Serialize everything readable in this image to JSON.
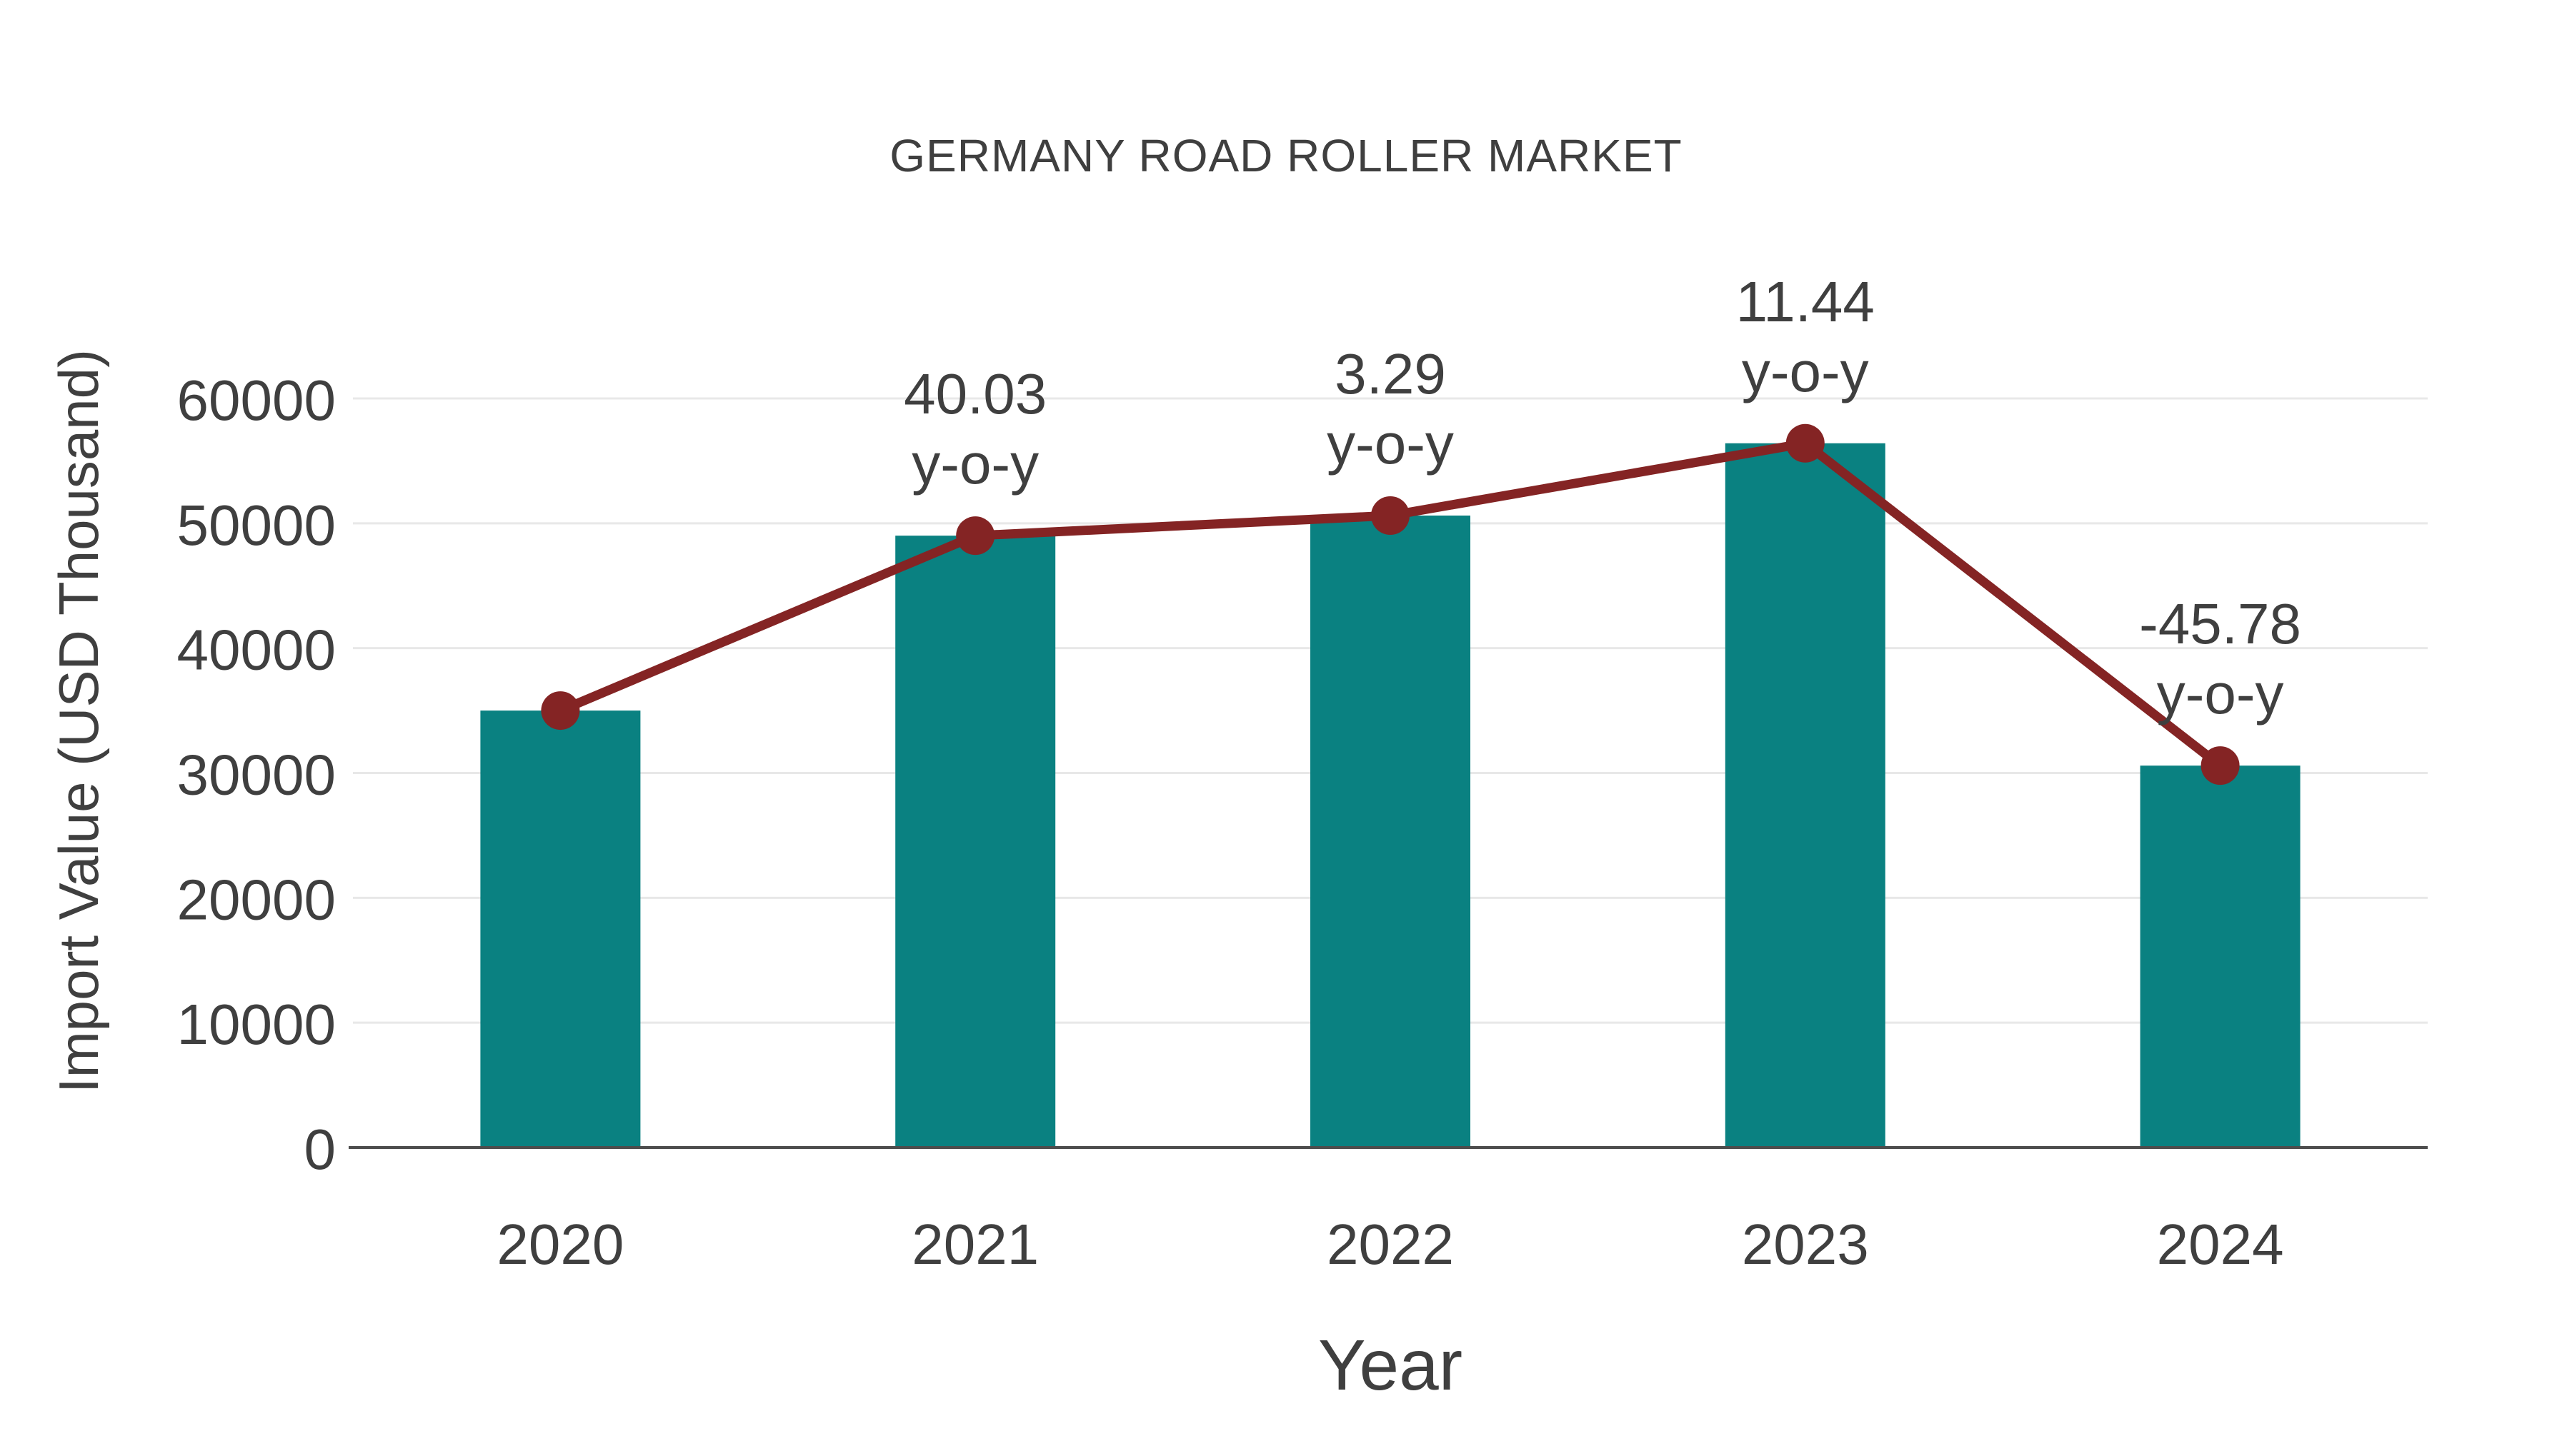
{
  "chart_data": {
    "type": "bar",
    "title": "GERMANY ROAD ROLLER MARKET",
    "xlabel": "Year",
    "ylabel": "Import Value (USD Thousand)",
    "categories": [
      "2020",
      "2021",
      "2022",
      "2023",
      "2024"
    ],
    "series": [
      {
        "name": "Import Value bars",
        "type": "bar",
        "values": [
          35000,
          49010,
          50620,
          56410,
          30590
        ],
        "color": "#0a8181"
      },
      {
        "name": "Import Value trend line",
        "type": "line",
        "values": [
          35000,
          49010,
          50620,
          56410,
          30590
        ],
        "color": "#842424"
      }
    ],
    "annotations": [
      {
        "category": "2021",
        "line1": "40.03",
        "line2": "y-o-y"
      },
      {
        "category": "2022",
        "line1": "3.29",
        "line2": "y-o-y"
      },
      {
        "category": "2023",
        "line1": "11.44",
        "line2": "y-o-y"
      },
      {
        "category": "2024",
        "line1": "-45.78",
        "line2": "y-o-y"
      }
    ],
    "y_ticks": [
      0,
      10000,
      20000,
      30000,
      40000,
      50000,
      60000
    ],
    "ylim": [
      0,
      60000
    ],
    "grid": true,
    "legend": "none",
    "colors": {
      "text": "#3f3f3f",
      "grid": "#e8e8e8",
      "axis": "#4d4d4d"
    }
  }
}
